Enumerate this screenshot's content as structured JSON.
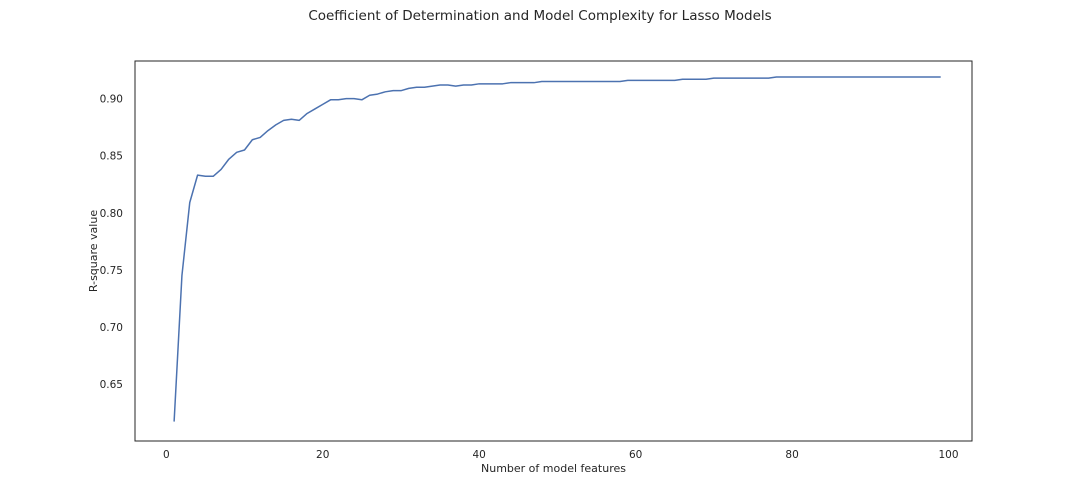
{
  "chart_data": {
    "type": "line",
    "title": "Coefficient of Determination and Model Complexity for Lasso Models",
    "xlabel": "Number of model features",
    "ylabel": "R-square value",
    "xlim": [
      -4,
      103
    ],
    "ylim": [
      0.6,
      0.933
    ],
    "x_ticks": [
      0,
      20,
      40,
      60,
      80,
      100
    ],
    "y_ticks": [
      0.65,
      0.7,
      0.75,
      0.8,
      0.85,
      0.9
    ],
    "y_tick_labels": [
      "0.65",
      "0.70",
      "0.75",
      "0.80",
      "0.85",
      "0.90"
    ],
    "grid": false,
    "series": [
      {
        "color": "#4c72b0",
        "x": [
          1,
          2,
          3,
          4,
          5,
          6,
          7,
          8,
          9,
          10,
          11,
          12,
          13,
          14,
          15,
          16,
          17,
          18,
          19,
          20,
          21,
          22,
          23,
          24,
          25,
          26,
          27,
          28,
          29,
          30,
          31,
          32,
          33,
          34,
          35,
          36,
          37,
          38,
          39,
          40,
          41,
          42,
          43,
          44,
          45,
          46,
          47,
          48,
          49,
          50,
          51,
          52,
          53,
          54,
          55,
          56,
          57,
          58,
          59,
          60,
          61,
          62,
          63,
          64,
          65,
          66,
          67,
          68,
          69,
          70,
          71,
          72,
          73,
          74,
          75,
          76,
          77,
          78,
          79,
          80,
          81,
          82,
          83,
          84,
          85,
          86,
          87,
          88,
          89,
          90,
          91,
          92,
          93,
          94,
          95,
          96,
          97,
          98,
          99
        ],
        "y": [
          0.617,
          0.745,
          0.809,
          0.833,
          0.832,
          0.832,
          0.838,
          0.847,
          0.853,
          0.855,
          0.864,
          0.866,
          0.872,
          0.877,
          0.881,
          0.882,
          0.881,
          0.887,
          0.891,
          0.895,
          0.899,
          0.899,
          0.9,
          0.9,
          0.899,
          0.903,
          0.904,
          0.906,
          0.907,
          0.907,
          0.909,
          0.91,
          0.91,
          0.911,
          0.912,
          0.912,
          0.911,
          0.912,
          0.912,
          0.913,
          0.913,
          0.913,
          0.913,
          0.914,
          0.914,
          0.914,
          0.914,
          0.915,
          0.915,
          0.915,
          0.915,
          0.915,
          0.915,
          0.915,
          0.915,
          0.915,
          0.915,
          0.915,
          0.916,
          0.916,
          0.916,
          0.916,
          0.916,
          0.916,
          0.916,
          0.917,
          0.917,
          0.917,
          0.917,
          0.918,
          0.918,
          0.918,
          0.918,
          0.918,
          0.918,
          0.918,
          0.918,
          0.919,
          0.919,
          0.919,
          0.919,
          0.919,
          0.919,
          0.919,
          0.919,
          0.919,
          0.919,
          0.919,
          0.919,
          0.919,
          0.919,
          0.919,
          0.919,
          0.919,
          0.919,
          0.919,
          0.919,
          0.919,
          0.919
        ]
      }
    ]
  }
}
